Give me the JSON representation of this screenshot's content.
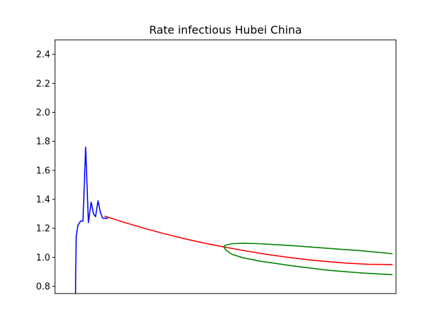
{
  "chart_data": {
    "type": "line",
    "title": "Rate infectious Hubei China",
    "xlabel": "",
    "ylabel": "",
    "xlim": [
      0,
      100
    ],
    "ylim": [
      0.75,
      2.5
    ],
    "yticks": [
      0.8,
      1.0,
      1.2,
      1.4,
      1.6,
      1.8,
      2.0,
      2.2,
      2.4
    ],
    "ytick_labels": [
      "0.8",
      "1.0",
      "1.2",
      "1.4",
      "1.6",
      "1.8",
      "2.0",
      "2.2",
      "2.4"
    ],
    "grid": false,
    "legend": "none",
    "series": [
      {
        "color": "#0000ff",
        "x": [
          6,
          6.2,
          6.7,
          7.5,
          8.2,
          9,
          9.8,
          10.6,
          11.3,
          11.9,
          12.6,
          13.3,
          14.0,
          14.8,
          15.6
        ],
        "y": [
          0.75,
          1.14,
          1.22,
          1.25,
          1.25,
          1.76,
          1.24,
          1.38,
          1.3,
          1.28,
          1.39,
          1.31,
          1.27,
          1.27,
          1.27
        ]
      },
      {
        "color": "#ff0000",
        "x": [
          14.5,
          20,
          26,
          32,
          38,
          44,
          50,
          56,
          62,
          68,
          74,
          80,
          86,
          92,
          99
        ],
        "y": [
          1.285,
          1.243,
          1.201,
          1.163,
          1.128,
          1.097,
          1.069,
          1.044,
          1.021,
          1.001,
          0.984,
          0.97,
          0.959,
          0.952,
          0.95
        ]
      },
      {
        "color": "#008000",
        "x": [
          49.5,
          50,
          52,
          55,
          60,
          70,
          80,
          90,
          99
        ],
        "y": [
          1.075,
          1.084,
          1.094,
          1.097,
          1.094,
          1.08,
          1.062,
          1.045,
          1.025
        ]
      },
      {
        "color": "#008000",
        "x": [
          49.5,
          50,
          52,
          55,
          60,
          70,
          80,
          90,
          99
        ],
        "y": [
          1.075,
          1.052,
          1.02,
          0.998,
          0.974,
          0.94,
          0.911,
          0.892,
          0.88
        ]
      }
    ]
  }
}
